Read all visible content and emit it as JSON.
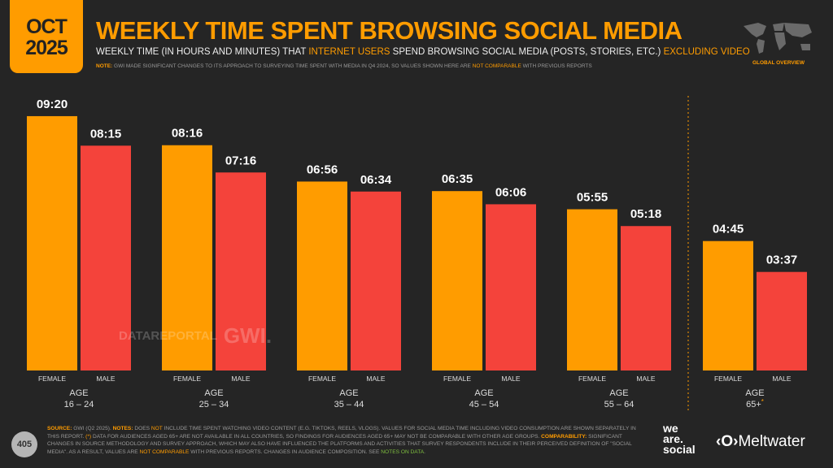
{
  "header": {
    "date_month": "OCT",
    "date_year": "2025",
    "title": "WEEKLY TIME SPENT BROWSING SOCIAL MEDIA",
    "subtitle_a": "WEEKLY TIME (IN HOURS AND MINUTES) THAT ",
    "subtitle_b": "INTERNET USERS",
    "subtitle_c": " SPEND BROWSING SOCIAL MEDIA (POSTS, STORIES, ETC.) ",
    "subtitle_d": "EXCLUDING VIDEO",
    "note_a": "NOTE:",
    "note_b": " GWI MADE SIGNIFICANT CHANGES TO ITS APPROACH TO SURVEYING TIME SPENT WITH MEDIA IN Q4 2024, SO VALUES SHOWN HERE ARE ",
    "note_c": "NOT COMPARABLE",
    "note_d": " WITH PREVIOUS REPORTS",
    "region": "GLOBAL OVERVIEW"
  },
  "chart_data": {
    "type": "bar",
    "title": "WEEKLY TIME SPENT BROWSING SOCIAL MEDIA",
    "unit": "hours:minutes",
    "groups": [
      {
        "age": "16 – 24",
        "female": "09:20",
        "male": "08:15"
      },
      {
        "age": "25 – 34",
        "female": "08:16",
        "male": "07:16"
      },
      {
        "age": "35 – 44",
        "female": "06:56",
        "male": "06:34"
      },
      {
        "age": "45 – 54",
        "female": "06:35",
        "male": "06:06"
      },
      {
        "age": "55 – 64",
        "female": "05:55",
        "male": "05:18"
      },
      {
        "age": "65+",
        "asterisk": "*",
        "female": "04:45",
        "male": "03:37"
      }
    ],
    "series": [
      {
        "name": "FEMALE",
        "color": "#ff9c00"
      },
      {
        "name": "MALE",
        "color": "#f4433b"
      }
    ],
    "age_label": "AGE"
  },
  "watermark": {
    "a": "DATAREPORTAL",
    "b": "GWI."
  },
  "footer": {
    "page": "405",
    "source_l": "SOURCE:",
    "source_v": " GWI (Q2 2025). ",
    "notes_l": "NOTES:",
    "t1": " DOES ",
    "not": "NOT",
    "t2": " INCLUDE TIME SPENT WATCHING VIDEO CONTENT (E.G. TIKTOKS, REELS, VLOGS). VALUES FOR SOCIAL MEDIA TIME INCLUDING VIDEO CONSUMPTION ARE SHOWN SEPARATELY IN THIS REPORT. ",
    "ast": "(*)",
    "t3": " DATA FOR AUDIENCES AGED 65+ ARE NOT AVAILABLE IN ALL COUNTRIES, SO FINDINGS FOR AUDIENCES AGED 65+ MAY NOT BE COMPARABLE WITH OTHER AGE GROUPS. ",
    "comp_l": "COMPARABILITY:",
    "t4": " SIGNIFICANT CHANGES IN SOURCE METHODOLOGY AND SURVEY APPROACH, WHICH MAY ALSO HAVE INFLUENCED THE PLATFORMS AND ACTIVITIES THAT SURVEY RESPONDENTS INCLUDE IN THEIR PERCEIVED DEFINITION OF \"SOCIAL MEDIA\". AS A RESULT, VALUES ARE ",
    "nc": "NOT COMPARABLE",
    "t5": " WITH PREVIOUS REPORTS. CHANGES IN AUDIENCE COMPOSITION. SEE ",
    "link": "NOTES ON DATA",
    "t6": ".",
    "brand1": "we are. social",
    "brand2": "Meltwater"
  }
}
